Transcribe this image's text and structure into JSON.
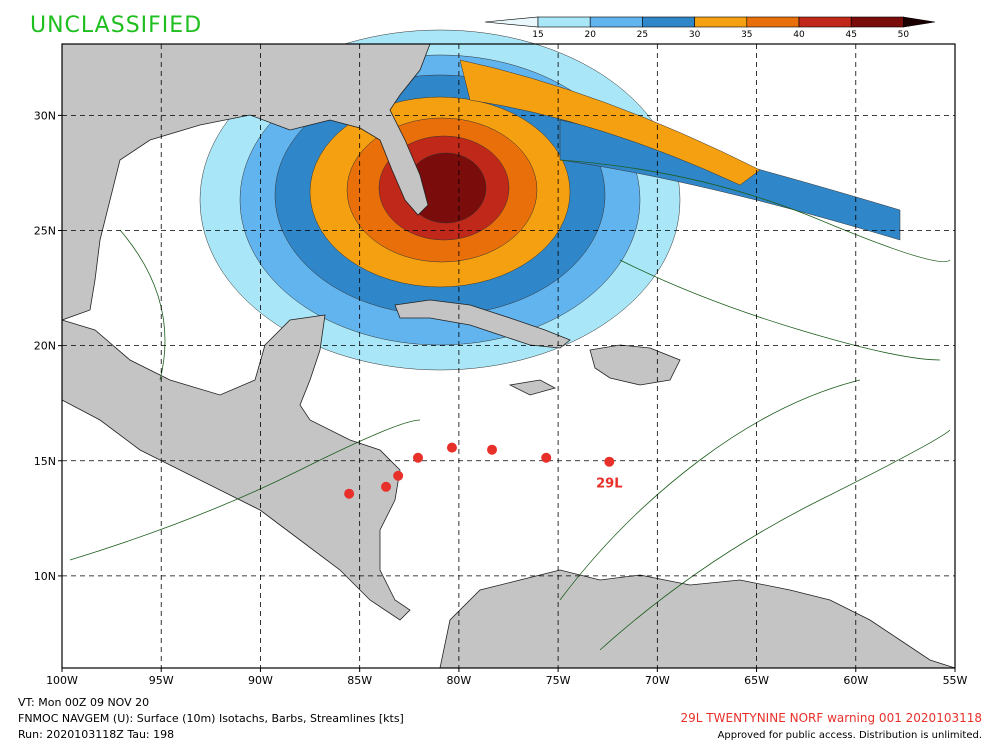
{
  "header": {
    "classification": "UNCLASSIFIED"
  },
  "colorbar": {
    "ticks": [
      15,
      20,
      25,
      30,
      35,
      40,
      45,
      50
    ],
    "colors": [
      "#e8f8fd",
      "#a8e6f8",
      "#62b4ef",
      "#2f86c8",
      "#f5a010",
      "#e86f0a",
      "#c0281a",
      "#7a0c0c",
      "#1a0000"
    ]
  },
  "map": {
    "xlim": [
      -100,
      -55
    ],
    "ylim": [
      6,
      33.1
    ],
    "xticks": [
      {
        "value": -100,
        "label": "100W"
      },
      {
        "value": -95,
        "label": "95W"
      },
      {
        "value": -90,
        "label": "90W"
      },
      {
        "value": -85,
        "label": "85W"
      },
      {
        "value": -80,
        "label": "80W"
      },
      {
        "value": -75,
        "label": "75W"
      },
      {
        "value": -70,
        "label": "70W"
      },
      {
        "value": -65,
        "label": "65W"
      },
      {
        "value": -60,
        "label": "60W"
      },
      {
        "value": -55,
        "label": "55W"
      }
    ],
    "yticks": [
      {
        "value": 10,
        "label": "10N"
      },
      {
        "value": 15,
        "label": "15N"
      },
      {
        "value": 20,
        "label": "20N"
      },
      {
        "value": 25,
        "label": "25N"
      },
      {
        "value": 30,
        "label": "30N"
      }
    ],
    "track": {
      "name": "29L",
      "color": "#e8302a",
      "lon": [
        -85.53,
        -83.67,
        -83.06,
        -82.06,
        -80.35,
        -78.33,
        -75.6,
        -72.42
      ],
      "lat": [
        13.57,
        13.87,
        14.35,
        15.13,
        15.57,
        15.48,
        15.13,
        14.96
      ]
    }
  },
  "footer": {
    "valid_time": "VT: Mon 00Z 09 NOV 20",
    "product": "FNMOC NAVGEM (U): Surface (10m) Isotachs, Barbs, Streamlines [kts]",
    "run": "Run: 2020103118Z Tau: 198",
    "warning": "29L TWENTYNINE NORF warning 001 2020103118",
    "release": "Approved for public access. Distribution is unlimited."
  }
}
